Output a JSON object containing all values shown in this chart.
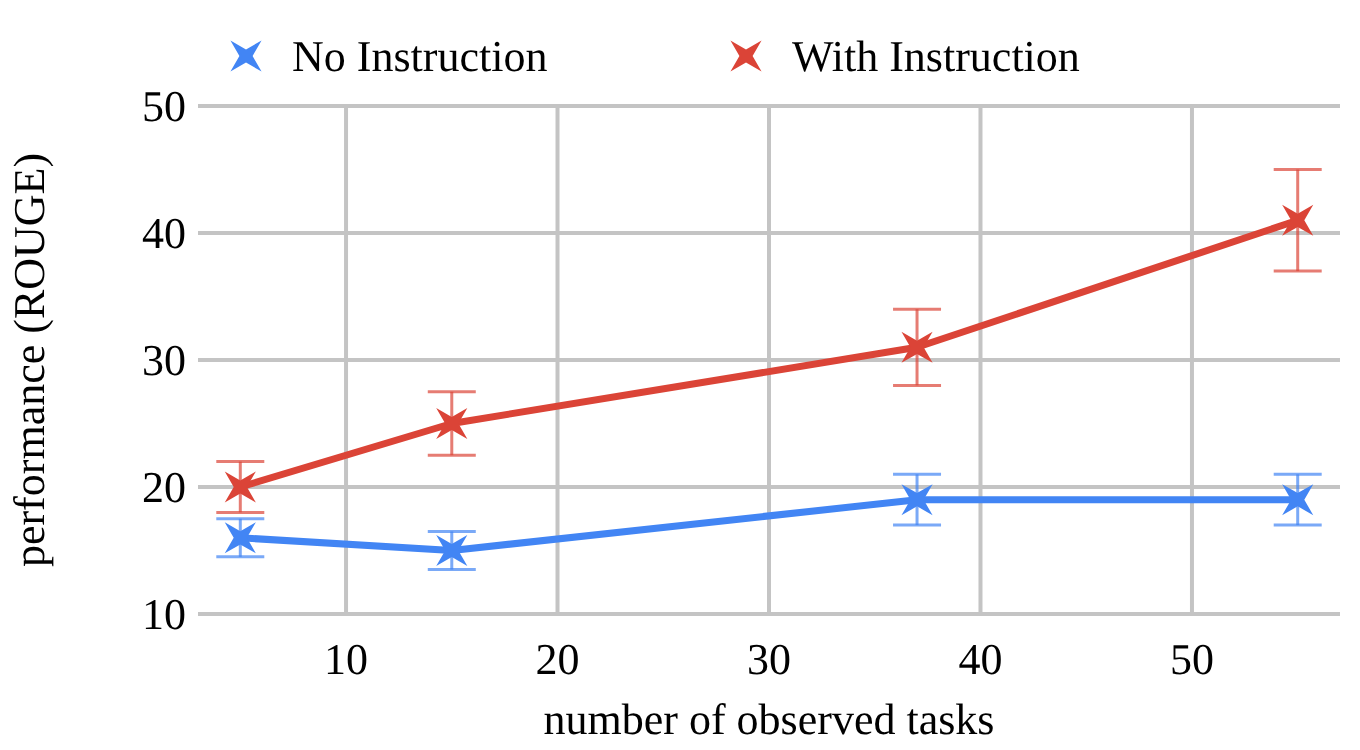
{
  "chart_data": {
    "type": "line",
    "xlabel": "number of observed tasks",
    "ylabel": "performance (ROUGE)",
    "x": [
      5,
      15,
      37,
      55
    ],
    "series": [
      {
        "name": "No Instruction",
        "color": "#4285f4",
        "values": [
          16,
          15,
          19,
          19
        ],
        "errors": [
          1.5,
          1.5,
          2,
          2
        ]
      },
      {
        "name": "With Instruction",
        "color": "#db4437",
        "values": [
          20,
          25,
          31,
          41
        ],
        "errors": [
          2,
          2.5,
          [
            28,
            34
          ],
          [
            37,
            45
          ]
        ]
      }
    ],
    "xlim": [
      3,
      57
    ],
    "xticks": [
      10,
      20,
      30,
      40,
      50
    ],
    "ylim": [
      10,
      50
    ],
    "yticks": [
      10,
      20,
      30,
      40,
      50
    ],
    "grid": true,
    "legend": "top",
    "marker": "star",
    "line_style": "solid"
  }
}
